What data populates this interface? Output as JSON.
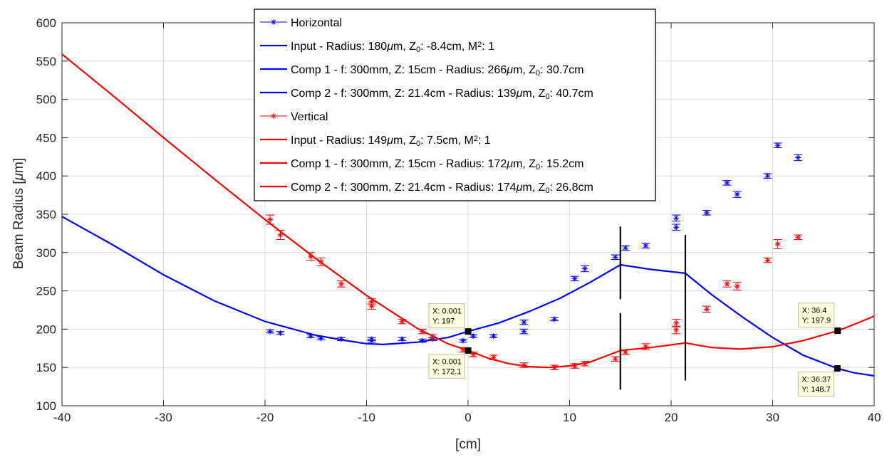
{
  "chart_data": {
    "type": "line",
    "xlabel": "[cm]",
    "ylabel": "Beam Radius [μm]",
    "xlim": [
      -40,
      40
    ],
    "ylim": [
      100,
      600
    ],
    "xticks": [
      -40,
      -30,
      -20,
      -10,
      0,
      10,
      20,
      30,
      40
    ],
    "yticks": [
      100,
      150,
      200,
      250,
      300,
      350,
      400,
      450,
      500,
      550,
      600
    ],
    "grid": true,
    "legend_position": "top-center",
    "colors": {
      "horizontal": "#0000ff",
      "vertical": "#ff0000",
      "lens_marker": "#000000"
    },
    "legend": [
      {
        "series": "horizontal_measured",
        "style": "marker",
        "color": "#0000ff",
        "text": "Horizontal",
        "parts": [
          {
            "t": "Horizontal"
          }
        ]
      },
      {
        "series": "horizontal_input",
        "style": "line",
        "color": "#0000ff",
        "text": "Input - Radius: 180μm, Z0: -8.4cm, M2: 1",
        "parts": [
          {
            "t": "Input - Radius: 180"
          },
          {
            "t": "μ",
            "mu": true
          },
          {
            "t": "m, Z"
          },
          {
            "t": "0",
            "sub": true
          },
          {
            "t": ": -8.4cm, M"
          },
          {
            "t": "2",
            "sup": true
          },
          {
            "t": ": 1"
          }
        ]
      },
      {
        "series": "horizontal_comp1",
        "style": "line",
        "color": "#0000ff",
        "text": "Comp 1 - f: 300mm, Z: 15cm - Radius: 266μm, Z0: 30.7cm",
        "parts": [
          {
            "t": "Comp 1 - f: 300mm, Z: 15cm - Radius: 266"
          },
          {
            "t": "μ",
            "mu": true
          },
          {
            "t": "m, Z"
          },
          {
            "t": "0",
            "sub": true
          },
          {
            "t": ": 30.7cm"
          }
        ]
      },
      {
        "series": "horizontal_comp2",
        "style": "line",
        "color": "#0000ff",
        "text": "Comp 2 - f: 300mm, Z: 21.4cm - Radius: 139μm, Z0: 40.7cm",
        "parts": [
          {
            "t": "Comp 2 - f: 300mm, Z: 21.4cm - Radius: 139"
          },
          {
            "t": "μ",
            "mu": true
          },
          {
            "t": "m, Z"
          },
          {
            "t": "0",
            "sub": true
          },
          {
            "t": ": 40.7cm"
          }
        ]
      },
      {
        "series": "vertical_measured",
        "style": "marker",
        "color": "#ff0000",
        "text": "Vertical",
        "parts": [
          {
            "t": "Vertical"
          }
        ]
      },
      {
        "series": "vertical_input",
        "style": "line",
        "color": "#ff0000",
        "text": "Input - Radius: 149μm, Z0: 7.5cm, M2: 1",
        "parts": [
          {
            "t": "Input - Radius: 149"
          },
          {
            "t": "μ",
            "mu": true
          },
          {
            "t": "m, Z"
          },
          {
            "t": "0",
            "sub": true
          },
          {
            "t": ": 7.5cm, M"
          },
          {
            "t": "2",
            "sup": true
          },
          {
            "t": ": 1"
          }
        ]
      },
      {
        "series": "vertical_comp1",
        "style": "line",
        "color": "#ff0000",
        "text": "Comp 1 - f: 300mm, Z: 15cm - Radius: 172μm, Z0: 15.2cm",
        "parts": [
          {
            "t": "Comp 1 - f: 300mm, Z: 15cm - Radius: 172"
          },
          {
            "t": "μ",
            "mu": true
          },
          {
            "t": "m, Z"
          },
          {
            "t": "0",
            "sub": true
          },
          {
            "t": ": 15.2cm"
          }
        ]
      },
      {
        "series": "vertical_comp2",
        "style": "line",
        "color": "#ff0000",
        "text": "Comp 2 - f: 300mm, Z: 21.4cm - Radius: 174μm, Z0: 26.8cm",
        "parts": [
          {
            "t": "Comp 2 - f: 300mm, Z: 21.4cm - Radius: 174"
          },
          {
            "t": "μ",
            "mu": true
          },
          {
            "t": "m, Z"
          },
          {
            "t": "0",
            "sub": true
          },
          {
            "t": ": 26.8cm"
          }
        ]
      }
    ],
    "series": [
      {
        "id": "horizontal_measured",
        "color": "#0000ff",
        "kind": "errorbar-star",
        "points": [
          {
            "x": -19.5,
            "y": 197,
            "err": 2
          },
          {
            "x": -18.5,
            "y": 195,
            "err": 2
          },
          {
            "x": -15.5,
            "y": 191,
            "err": 2
          },
          {
            "x": -14.5,
            "y": 188,
            "err": 2
          },
          {
            "x": -12.5,
            "y": 187,
            "err": 2
          },
          {
            "x": -9.5,
            "y": 187,
            "err": 2
          },
          {
            "x": -9.5,
            "y": 185,
            "err": 2
          },
          {
            "x": -6.5,
            "y": 187,
            "err": 2
          },
          {
            "x": -4.5,
            "y": 185,
            "err": 2
          },
          {
            "x": -3.5,
            "y": 187,
            "err": 2
          },
          {
            "x": -0.5,
            "y": 185,
            "err": 2
          },
          {
            "x": 0.5,
            "y": 191,
            "err": 2
          },
          {
            "x": 2.5,
            "y": 191,
            "err": 2
          },
          {
            "x": 5.5,
            "y": 209,
            "err": 3
          },
          {
            "x": 5.5,
            "y": 197,
            "err": 3
          },
          {
            "x": 8.5,
            "y": 213,
            "err": 2
          },
          {
            "x": 10.5,
            "y": 266,
            "err": 3
          },
          {
            "x": 11.5,
            "y": 279,
            "err": 4
          },
          {
            "x": 14.5,
            "y": 294,
            "err": 3
          },
          {
            "x": 15.5,
            "y": 306,
            "err": 3
          },
          {
            "x": 17.5,
            "y": 309,
            "err": 3
          },
          {
            "x": 20.5,
            "y": 345,
            "err": 4
          },
          {
            "x": 20.5,
            "y": 333,
            "err": 4
          },
          {
            "x": 23.5,
            "y": 352,
            "err": 3
          },
          {
            "x": 25.5,
            "y": 391,
            "err": 3
          },
          {
            "x": 26.5,
            "y": 376,
            "err": 4
          },
          {
            "x": 29.5,
            "y": 400,
            "err": 3
          },
          {
            "x": 30.5,
            "y": 440,
            "err": 3
          },
          {
            "x": 32.5,
            "y": 424,
            "err": 4
          }
        ]
      },
      {
        "id": "vertical_measured",
        "color": "#ff0000",
        "kind": "errorbar-star",
        "points": [
          {
            "x": -19.5,
            "y": 343,
            "err": 6
          },
          {
            "x": -18.5,
            "y": 323,
            "err": 6
          },
          {
            "x": -15.5,
            "y": 295,
            "err": 5
          },
          {
            "x": -14.5,
            "y": 288,
            "err": 5
          },
          {
            "x": -12.5,
            "y": 259,
            "err": 4
          },
          {
            "x": -9.5,
            "y": 236,
            "err": 4
          },
          {
            "x": -9.5,
            "y": 230,
            "err": 4
          },
          {
            "x": -6.5,
            "y": 210,
            "err": 3
          },
          {
            "x": -4.5,
            "y": 197,
            "err": 3
          },
          {
            "x": -3.5,
            "y": 190,
            "err": 3
          },
          {
            "x": -0.5,
            "y": 173,
            "err": 3
          },
          {
            "x": 0.5,
            "y": 167,
            "err": 3
          },
          {
            "x": 2.5,
            "y": 163,
            "err": 3
          },
          {
            "x": 5.5,
            "y": 153,
            "err": 3
          },
          {
            "x": 8.5,
            "y": 150,
            "err": 3
          },
          {
            "x": 10.5,
            "y": 152,
            "err": 3
          },
          {
            "x": 11.5,
            "y": 155,
            "err": 3
          },
          {
            "x": 14.5,
            "y": 161,
            "err": 3
          },
          {
            "x": 15.5,
            "y": 170,
            "err": 3
          },
          {
            "x": 17.5,
            "y": 177,
            "err": 4
          },
          {
            "x": 20.5,
            "y": 208,
            "err": 5
          },
          {
            "x": 20.5,
            "y": 199,
            "err": 5
          },
          {
            "x": 23.5,
            "y": 226,
            "err": 4
          },
          {
            "x": 25.5,
            "y": 259,
            "err": 4
          },
          {
            "x": 26.5,
            "y": 256,
            "err": 5
          },
          {
            "x": 29.5,
            "y": 290,
            "err": 3
          },
          {
            "x": 30.5,
            "y": 311,
            "err": 6
          },
          {
            "x": 32.5,
            "y": 320,
            "err": 3
          }
        ]
      },
      {
        "id": "horizontal_input",
        "color": "#0000ff",
        "kind": "line",
        "points": [
          {
            "x": -40,
            "y": 347
          },
          {
            "x": -35,
            "y": 310
          },
          {
            "x": -30,
            "y": 271
          },
          {
            "x": -25,
            "y": 237
          },
          {
            "x": -20,
            "y": 210
          },
          {
            "x": -15,
            "y": 192
          },
          {
            "x": -12,
            "y": 185
          },
          {
            "x": -10,
            "y": 181
          },
          {
            "x": -8.4,
            "y": 180
          },
          {
            "x": -5,
            "y": 183
          },
          {
            "x": -2,
            "y": 189
          },
          {
            "x": 0,
            "y": 197
          }
        ]
      },
      {
        "id": "horizontal_comp1",
        "color": "#0000ff",
        "kind": "line",
        "points": [
          {
            "x": 0,
            "y": 197
          },
          {
            "x": 3,
            "y": 208
          },
          {
            "x": 6,
            "y": 223
          },
          {
            "x": 9,
            "y": 240
          },
          {
            "x": 12,
            "y": 261
          },
          {
            "x": 15,
            "y": 284
          },
          {
            "x": 18,
            "y": 278
          },
          {
            "x": 21.4,
            "y": 273
          }
        ]
      },
      {
        "id": "horizontal_comp2",
        "color": "#0000ff",
        "kind": "line",
        "points": [
          {
            "x": 21.4,
            "y": 273
          },
          {
            "x": 24,
            "y": 245
          },
          {
            "x": 27,
            "y": 216
          },
          {
            "x": 30,
            "y": 189
          },
          {
            "x": 33,
            "y": 166
          },
          {
            "x": 36.37,
            "y": 148.7
          },
          {
            "x": 38,
            "y": 143
          },
          {
            "x": 40,
            "y": 139
          }
        ]
      },
      {
        "id": "vertical_input",
        "color": "#ff0000",
        "kind": "line",
        "points": [
          {
            "x": -40,
            "y": 559
          },
          {
            "x": -35,
            "y": 505
          },
          {
            "x": -30,
            "y": 450
          },
          {
            "x": -25,
            "y": 396
          },
          {
            "x": -20,
            "y": 343
          },
          {
            "x": -15,
            "y": 292
          },
          {
            "x": -10,
            "y": 244
          },
          {
            "x": -5,
            "y": 201
          },
          {
            "x": -2,
            "y": 181
          },
          {
            "x": 0,
            "y": 172.1
          }
        ]
      },
      {
        "id": "vertical_comp1",
        "color": "#ff0000",
        "kind": "line",
        "points": [
          {
            "x": 0,
            "y": 172.1
          },
          {
            "x": 2,
            "y": 162
          },
          {
            "x": 4,
            "y": 155
          },
          {
            "x": 6,
            "y": 151
          },
          {
            "x": 8,
            "y": 150
          },
          {
            "x": 10,
            "y": 152
          },
          {
            "x": 12,
            "y": 157
          },
          {
            "x": 15,
            "y": 172
          },
          {
            "x": 18,
            "y": 176
          },
          {
            "x": 21.4,
            "y": 182
          }
        ]
      },
      {
        "id": "vertical_comp2",
        "color": "#ff0000",
        "kind": "line",
        "points": [
          {
            "x": 21.4,
            "y": 182
          },
          {
            "x": 24,
            "y": 176
          },
          {
            "x": 26.8,
            "y": 174
          },
          {
            "x": 30,
            "y": 177
          },
          {
            "x": 33,
            "y": 185
          },
          {
            "x": 36.4,
            "y": 197.9
          },
          {
            "x": 38,
            "y": 206
          },
          {
            "x": 40,
            "y": 217
          }
        ]
      }
    ],
    "lens_markers": [
      {
        "x": 15,
        "y_segments": [
          [
            121,
            221
          ],
          [
            239,
            334
          ]
        ]
      },
      {
        "x": 21.4,
        "y_segments": [
          [
            133,
            323
          ]
        ]
      }
    ],
    "datatips": [
      {
        "x": 0.001,
        "y": 197,
        "lines": [
          "X: 0.001",
          "Y: 197"
        ],
        "side": "above"
      },
      {
        "x": 0.001,
        "y": 172.1,
        "lines": [
          "X: 0.001",
          "Y: 172.1"
        ],
        "side": "below"
      },
      {
        "x": 36.4,
        "y": 197.9,
        "lines": [
          "X: 36.4",
          "Y: 197.9"
        ],
        "side": "above"
      },
      {
        "x": 36.37,
        "y": 148.7,
        "lines": [
          "X: 36.37",
          "Y: 148.7"
        ],
        "side": "below"
      }
    ]
  }
}
